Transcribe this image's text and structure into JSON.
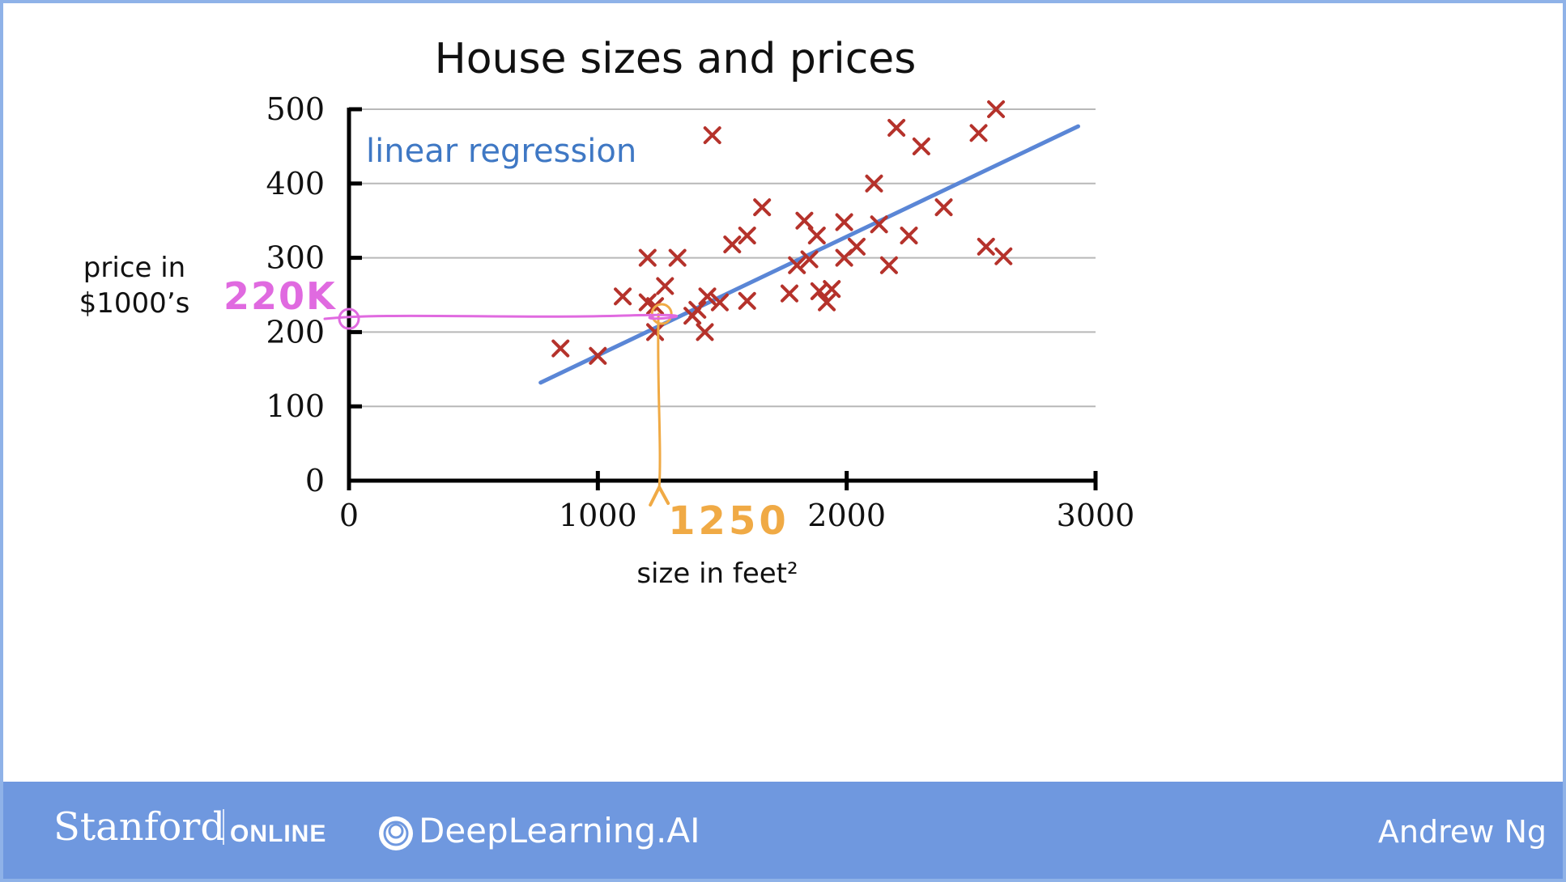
{
  "chart_data": {
    "type": "scatter",
    "title": "House sizes and prices",
    "xlabel": "size in feet²",
    "ylabel": "price in $1000’s",
    "xlim": [
      0,
      3000
    ],
    "ylim": [
      0,
      500
    ],
    "x_ticks": [
      "0",
      "1000",
      "2000",
      "3000"
    ],
    "y_ticks": [
      "0",
      "100",
      "200",
      "300",
      "400",
      "500"
    ],
    "grid": true,
    "points": [
      [
        850,
        178
      ],
      [
        1000,
        168
      ],
      [
        1100,
        248
      ],
      [
        1200,
        300
      ],
      [
        1200,
        240
      ],
      [
        1230,
        200
      ],
      [
        1230,
        235
      ],
      [
        1270,
        262
      ],
      [
        1320,
        300
      ],
      [
        1380,
        222
      ],
      [
        1400,
        230
      ],
      [
        1430,
        200
      ],
      [
        1440,
        248
      ],
      [
        1460,
        465
      ],
      [
        1490,
        240
      ],
      [
        1540,
        318
      ],
      [
        1600,
        330
      ],
      [
        1600,
        242
      ],
      [
        1660,
        368
      ],
      [
        1770,
        252
      ],
      [
        1800,
        290
      ],
      [
        1830,
        350
      ],
      [
        1850,
        298
      ],
      [
        1880,
        330
      ],
      [
        1890,
        255
      ],
      [
        1920,
        240
      ],
      [
        1940,
        258
      ],
      [
        1990,
        300
      ],
      [
        1990,
        348
      ],
      [
        2040,
        315
      ],
      [
        2110,
        400
      ],
      [
        2130,
        345
      ],
      [
        2170,
        290
      ],
      [
        2200,
        475
      ],
      [
        2250,
        330
      ],
      [
        2300,
        450
      ],
      [
        2390,
        368
      ],
      [
        2530,
        468
      ],
      [
        2560,
        315
      ],
      [
        2600,
        500
      ],
      [
        2630,
        302
      ]
    ],
    "fit_line": {
      "label": "linear regression",
      "x": [
        770,
        2930
      ],
      "y": [
        132,
        477
      ]
    },
    "annotations": {
      "x_mark": {
        "value": 1250,
        "text": "1250"
      },
      "y_mark": {
        "value": 220,
        "text": "220K"
      }
    },
    "colors": {
      "points": "#b5322b",
      "fit_line": "#5a86d6",
      "fit_label": "#3f78c4",
      "x_annotation": "#f0aa45",
      "y_annotation": "#e06ae0",
      "grid": "#b8b8b8",
      "axis": "#000000"
    }
  },
  "footer": {
    "brand": "Stanford",
    "brand_suffix": "ONLINE",
    "partner_icon": "deeplearning-ai-logo-icon",
    "partner": "DeepLearning.AI",
    "author": "Andrew Ng",
    "background": "#6f98df"
  }
}
